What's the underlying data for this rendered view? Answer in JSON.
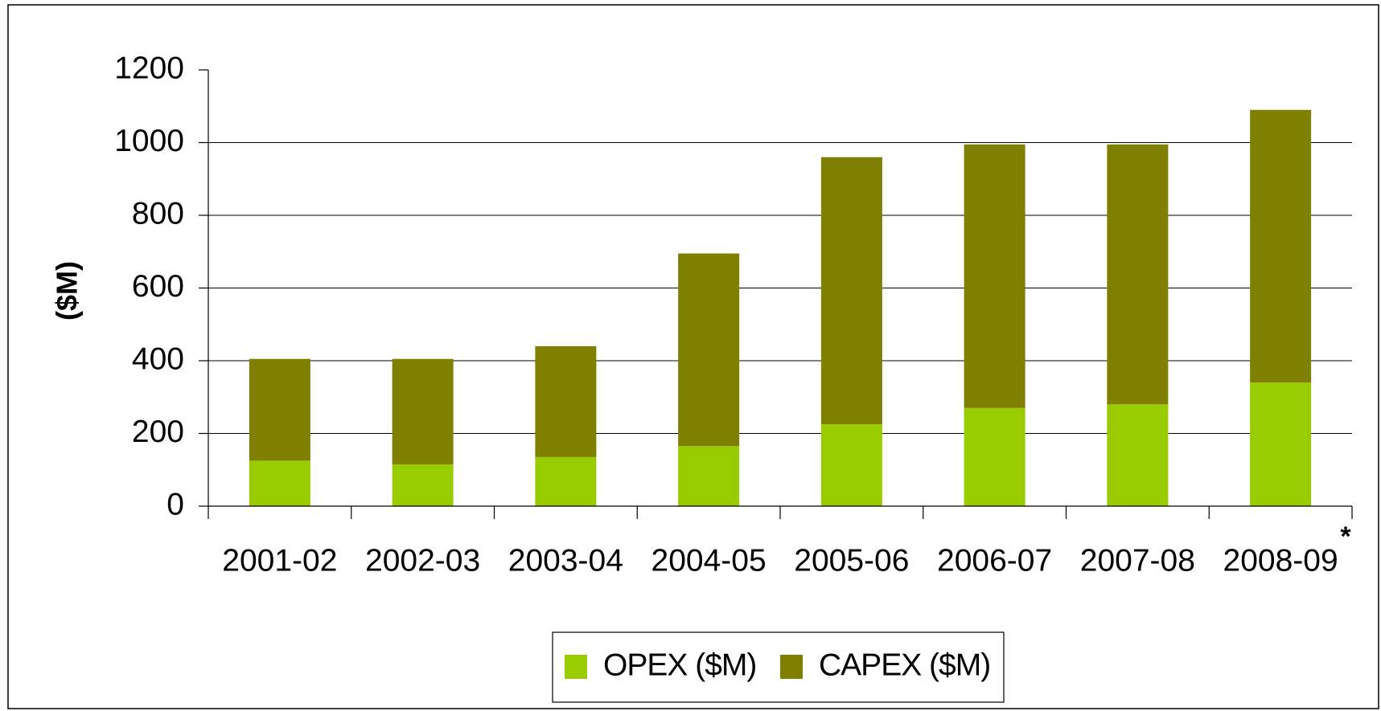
{
  "chart_data": {
    "type": "stacked_bar",
    "y_label": "($M)",
    "annotation": "*",
    "categories": [
      "2001-02",
      "2002-03",
      "2003-04",
      "2004-05",
      "2005-06",
      "2006-07",
      "2007-08",
      "2008-09"
    ],
    "series": [
      {
        "name": "OPEX ($M)",
        "color": "#99cc00",
        "values": [
          125,
          115,
          135,
          165,
          225,
          270,
          280,
          340
        ]
      },
      {
        "name": "CAPEX ($M)",
        "color": "#808000",
        "values": [
          280,
          290,
          305,
          530,
          735,
          725,
          715,
          750
        ]
      }
    ],
    "ylim": [
      0,
      1200
    ],
    "yticks": [
      0,
      200,
      400,
      600,
      800,
      1000,
      1200
    ],
    "grid": true,
    "legend": "bottom"
  }
}
